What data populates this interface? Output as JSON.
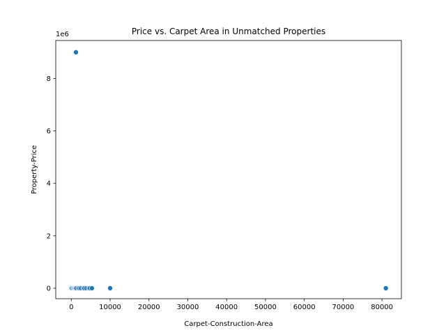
{
  "chart_data": {
    "type": "scatter",
    "title": "Price vs. Carpet Area in Unmatched Properties",
    "xlabel": "Carpet-Construction-Area",
    "ylabel": "Property-Price",
    "y_offset_label": "1e6",
    "xlim": [
      -4000,
      85000
    ],
    "ylim": [
      -400000,
      9450000
    ],
    "xticks": [
      0,
      10000,
      20000,
      30000,
      40000,
      50000,
      60000,
      70000,
      80000
    ],
    "xtick_labels": [
      "0",
      "10000",
      "20000",
      "30000",
      "40000",
      "50000",
      "60000",
      "70000",
      "80000"
    ],
    "yticks": [
      0,
      2000000,
      4000000,
      6000000,
      8000000
    ],
    "ytick_labels": [
      "0",
      "2",
      "4",
      "6",
      "8"
    ],
    "grid": false,
    "point_color": "#1f77b4",
    "points": [
      {
        "x": 1200,
        "y": 9000000
      },
      {
        "x": 100,
        "y": 0
      },
      {
        "x": 400,
        "y": 0
      },
      {
        "x": 700,
        "y": 0
      },
      {
        "x": 900,
        "y": 0
      },
      {
        "x": 1100,
        "y": 0
      },
      {
        "x": 1300,
        "y": 0
      },
      {
        "x": 1800,
        "y": 0
      },
      {
        "x": 2100,
        "y": 0
      },
      {
        "x": 2500,
        "y": 0
      },
      {
        "x": 3100,
        "y": 0
      },
      {
        "x": 3400,
        "y": 0
      },
      {
        "x": 3900,
        "y": 0
      },
      {
        "x": 4500,
        "y": 0
      },
      {
        "x": 4800,
        "y": 0
      },
      {
        "x": 5300,
        "y": 0
      },
      {
        "x": 10000,
        "y": 0
      },
      {
        "x": 81000,
        "y": 0
      }
    ]
  }
}
